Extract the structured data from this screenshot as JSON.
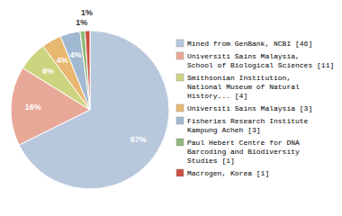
{
  "chart_data": {
    "type": "pie",
    "categories": [
      "Mined from GenBank, NCBI [46]",
      "Universiti Sains Malaysia,\nSchool of Biological Sciences [11]",
      "Smithsonian Institution,\nNational Museum of Natural\nHistory... [4]",
      "Universiti Sains Malaysia [3]",
      "Fisheries Research Institute\nKampung Acheh [3]",
      "Paul Hebert Centre for DNA\nBarcoding and Biodiversity\nStudies [1]",
      "Macrogen, Korea [1]"
    ],
    "values": [
      67,
      16,
      6,
      4,
      4,
      1,
      1
    ],
    "value_labels": [
      "67%",
      "16%",
      "6%",
      "4%",
      "4%",
      "1%",
      "1%"
    ],
    "colors": [
      "#b8c8dc",
      "#e8a898",
      "#ccd480",
      "#e8b870",
      "#a0b8d0",
      "#90b878",
      "#cc5040"
    ],
    "data_labels": true,
    "legend": "right"
  }
}
